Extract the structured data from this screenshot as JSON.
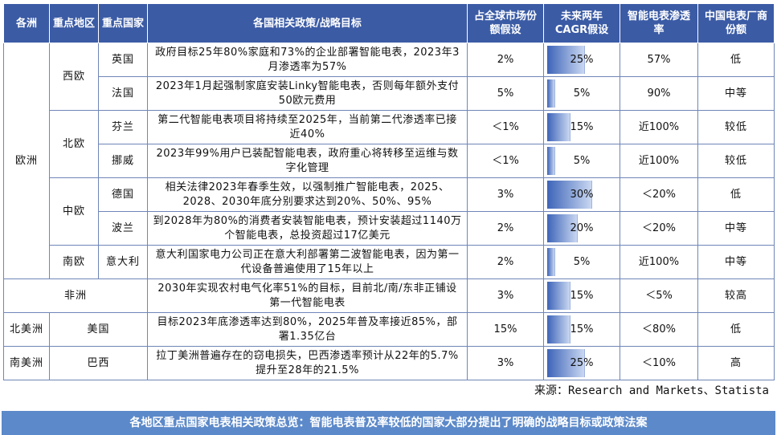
{
  "headers": [
    "各洲",
    "重点地区",
    "重点国家",
    "各国相关政策/战略目标",
    "占全球市场份额假设",
    "未来两年CAGR假设",
    "智能电表渗透率",
    "中国电表厂商份额"
  ],
  "regions": {
    "europe": "欧洲",
    "western": "西欧",
    "northern": "北欧",
    "central": "中欧",
    "southern": "南欧",
    "africa": "非洲",
    "north_america": "北美洲",
    "south_america": "南美洲"
  },
  "rows": [
    {
      "country": "英国",
      "policy": "政府目标25年80%家庭和73%的企业部署智能电表，2023年3月渗透率为57%",
      "share": "2%",
      "cagr": "25%",
      "cagr_value": 0.25,
      "penetration": "57%",
      "cn_share": "低"
    },
    {
      "country": "法国",
      "policy": "2023年1月起强制家庭安装Linky智能电表，否则每年额外支付50欧元费用",
      "share": "5%",
      "cagr": "5%",
      "cagr_value": 0.05,
      "penetration": "90%",
      "cn_share": "中等"
    },
    {
      "country": "芬兰",
      "policy": "第二代智能电表项目将持续至2025年，当前第二代渗透率已接近40%",
      "share": "＜1%",
      "cagr": "15%",
      "cagr_value": 0.15,
      "penetration": "近100%",
      "cn_share": "较低"
    },
    {
      "country": "挪威",
      "policy": "2023年99%用户已装配智能电表，政府重心将转移至运维与数字化管理",
      "share": "＜1%",
      "cagr": "5%",
      "cagr_value": 0.05,
      "penetration": "近100%",
      "cn_share": "较低"
    },
    {
      "country": "德国",
      "policy": "相关法律2023年春季生效，以强制推广智能电表，2025、2028、2030年底分别要求达到20%、50%、95%",
      "share": "3%",
      "cagr": "30%",
      "cagr_value": 0.3,
      "penetration": "＜20%",
      "cn_share": "低"
    },
    {
      "country": "波兰",
      "policy": "到2028年为80%的消费者安装智能电表，预计安装超过1140万个智能电表，总投资超过17亿美元",
      "share": "2%",
      "cagr": "20%",
      "cagr_value": 0.2,
      "penetration": "＜20%",
      "cn_share": "中等"
    },
    {
      "country": "意大利",
      "policy": "意大利国家电力公司正在意大利部署第二波智能电表，因为第一代设备普遍使用了15年以上",
      "share": "2%",
      "cagr": "5%",
      "cagr_value": 0.05,
      "penetration": "近100%",
      "cn_share": "中等"
    },
    {
      "country": "",
      "policy": "2030年实现农村电气化率51%的目标，目前北/南/东非正铺设第一代智能电表",
      "share": "3%",
      "cagr": "15%",
      "cagr_value": 0.15,
      "penetration": "＜5%",
      "cn_share": "较高"
    },
    {
      "country": "美国",
      "policy": "目标2023年底渗透率达到80%，2025年普及率接近85%，部署1.35亿台",
      "share": "15%",
      "cagr": "15%",
      "cagr_value": 0.15,
      "penetration": "＜80%",
      "cn_share": "低"
    },
    {
      "country": "巴西",
      "policy": "拉丁美洲普遍存在的窃电损失，巴西渗透率预计从22年的5.7%提升至28年的21.5%",
      "share": "3%",
      "cagr": "25%",
      "cagr_value": 0.25,
      "penetration": "＜10%",
      "cn_share": "高"
    }
  ],
  "source": "来源：Research and Markets、Statista",
  "caption": "各地区重点国家电表相关政策总览：智能电表普及率较低的国家大部分提出了明确的战略目标或政策法案",
  "colors": {
    "header_bg": "#3b5ba5",
    "border": "#6f86b8",
    "bar_start": "#3d64b8",
    "bar_end": "#c9d7f1",
    "caption_bg": "#5c89c9"
  }
}
